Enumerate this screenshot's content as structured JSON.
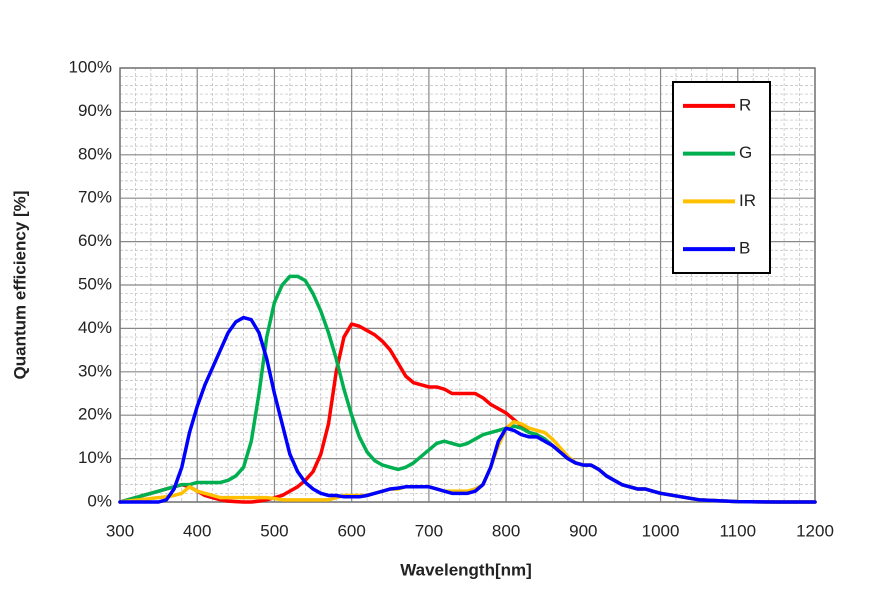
{
  "chart_data": {
    "type": "line",
    "x_label": "Wavelength[nm]",
    "y_label": "Quantum efficiency [%]",
    "x": [
      300,
      310,
      320,
      330,
      340,
      350,
      360,
      370,
      380,
      390,
      400,
      410,
      420,
      430,
      440,
      450,
      460,
      470,
      480,
      490,
      500,
      510,
      520,
      530,
      540,
      550,
      560,
      570,
      580,
      590,
      600,
      610,
      620,
      630,
      640,
      650,
      660,
      670,
      680,
      690,
      700,
      710,
      720,
      730,
      740,
      750,
      760,
      770,
      780,
      790,
      800,
      810,
      820,
      830,
      840,
      850,
      860,
      870,
      880,
      890,
      900,
      910,
      920,
      930,
      940,
      950,
      960,
      970,
      980,
      990,
      1000,
      1050,
      1100,
      1150,
      1200
    ],
    "series": [
      {
        "name": "R",
        "color": "#ff0000",
        "values": [
          0,
          0.5,
          1,
          1.5,
          2,
          2.5,
          3,
          3.5,
          4,
          3.5,
          2.5,
          1.5,
          1,
          0.5,
          0.2,
          0.1,
          0,
          0,
          0.2,
          0.5,
          1,
          1.5,
          2.5,
          3.5,
          5,
          7,
          11,
          18,
          30,
          38,
          41,
          40.5,
          39.5,
          38.5,
          37,
          35,
          32,
          29,
          27.5,
          27,
          26.5,
          26.5,
          26,
          25,
          25,
          25,
          25,
          24,
          22.5,
          21.5,
          20.5,
          19,
          17.5,
          16,
          15.5,
          14.5,
          13,
          11.5,
          10,
          9,
          8.5,
          8.5,
          7.5,
          6,
          5,
          4,
          3.5,
          3,
          3,
          2.5,
          2,
          0.5,
          0.1,
          0,
          0
        ]
      },
      {
        "name": "G",
        "color": "#00b050",
        "values": [
          0,
          0.5,
          1,
          1.5,
          2,
          2.5,
          3,
          3.5,
          4,
          4,
          4.5,
          4.5,
          4.5,
          4.5,
          5,
          6,
          8,
          14,
          25,
          38,
          46,
          50,
          52,
          52,
          51,
          48,
          44,
          39,
          33,
          26,
          20,
          15,
          11.5,
          9.5,
          8.5,
          8,
          7.5,
          8,
          9,
          10.5,
          12,
          13.5,
          14,
          13.5,
          13,
          13.5,
          14.5,
          15.5,
          16,
          16.5,
          17,
          17.5,
          17,
          16,
          15.5,
          14.5,
          13,
          11.5,
          10,
          9,
          8.5,
          8.5,
          7.5,
          6,
          5,
          4,
          3.5,
          3,
          3,
          2.5,
          2,
          0.5,
          0.1,
          0,
          0
        ]
      },
      {
        "name": "IR",
        "color": "#ffc000",
        "values": [
          0,
          0.2,
          0.4,
          0.6,
          0.8,
          1,
          1.2,
          1.5,
          2,
          3.5,
          2.5,
          2,
          1.5,
          1,
          1,
          1,
          1,
          1,
          1,
          1,
          0.8,
          0.5,
          0.5,
          0.5,
          0.5,
          0.5,
          0.5,
          0.5,
          1,
          1.5,
          1.5,
          1.5,
          1.5,
          2,
          2.5,
          3,
          3,
          3.5,
          3.5,
          3.5,
          3.5,
          3,
          2.5,
          2.5,
          2.5,
          2.5,
          3,
          4,
          8,
          13,
          17,
          18.5,
          18,
          17,
          16.5,
          16,
          14.5,
          12.5,
          10.5,
          9,
          8.5,
          8.5,
          7.5,
          6,
          5,
          4,
          3.5,
          3,
          3,
          2.5,
          2,
          0.5,
          0.1,
          0,
          0
        ]
      },
      {
        "name": "B",
        "color": "#0000ff",
        "values": [
          0,
          0,
          0,
          0,
          0,
          0,
          0.5,
          3,
          8,
          16,
          22,
          27,
          31,
          35,
          39,
          41.5,
          42.5,
          42,
          39,
          33,
          25,
          18,
          11,
          7,
          4.5,
          3,
          2,
          1.5,
          1.5,
          1.2,
          1.2,
          1.2,
          1.5,
          2,
          2.5,
          3,
          3.2,
          3.5,
          3.5,
          3.5,
          3.5,
          3,
          2.5,
          2,
          2,
          2,
          2.5,
          4,
          8,
          14,
          17,
          16.5,
          15.5,
          15,
          15,
          14,
          13,
          11.5,
          10,
          9,
          8.5,
          8.5,
          7.5,
          6,
          5,
          4,
          3.5,
          3,
          3,
          2.5,
          2,
          0.5,
          0.1,
          0,
          0
        ]
      }
    ],
    "xlim": [
      300,
      1200
    ],
    "xticks": [
      300,
      400,
      500,
      600,
      700,
      800,
      900,
      1000,
      1100,
      1200
    ],
    "ylim": [
      0,
      100
    ],
    "yticks": [
      {
        "value": 0,
        "label": "0%"
      },
      {
        "value": 10,
        "label": "10%"
      },
      {
        "value": 20,
        "label": "20%"
      },
      {
        "value": 30,
        "label": "30%"
      },
      {
        "value": 40,
        "label": "40%"
      },
      {
        "value": 50,
        "label": "50%"
      },
      {
        "value": 60,
        "label": "60%"
      },
      {
        "value": 70,
        "label": "70%"
      },
      {
        "value": 80,
        "label": "80%"
      },
      {
        "value": 90,
        "label": "90%"
      },
      {
        "value": 100,
        "label": "100%"
      }
    ],
    "grid": true,
    "minor_grid": true,
    "legend": "upper right"
  }
}
